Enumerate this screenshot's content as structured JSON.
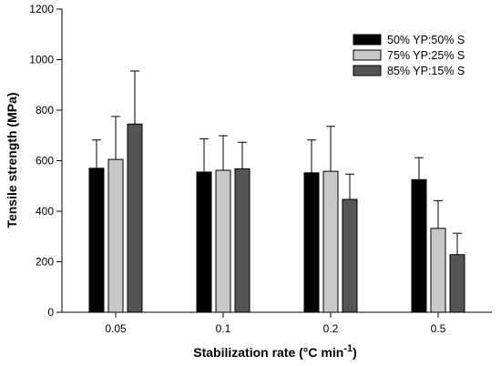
{
  "chart_data": {
    "type": "bar",
    "categories": [
      "0.05",
      "0.1",
      "0.2",
      "0.5"
    ],
    "series": [
      {
        "name": "50% YP:50% S",
        "color": "#000000",
        "values": [
          570,
          555,
          552,
          525
        ],
        "errors": [
          112,
          132,
          130,
          87
        ]
      },
      {
        "name": "75% YP:25% S",
        "color": "#c8c8c8",
        "values": [
          605,
          562,
          558,
          332
        ],
        "errors": [
          170,
          137,
          178,
          110
        ]
      },
      {
        "name": "85% YP:15% S",
        "color": "#555555",
        "values": [
          745,
          568,
          447,
          228
        ],
        "errors": [
          210,
          105,
          100,
          85
        ]
      }
    ],
    "xlabel": "Stabilization rate (°C min",
    "xlabel_sup": "-1",
    "xlabel_end": ")",
    "ylabel": "Tensile strength (MPa)",
    "ylim": [
      0,
      1200
    ],
    "yticks": [
      "0",
      "200",
      "400",
      "600",
      "800",
      "1000",
      "1200"
    ],
    "legend_position": "top-right",
    "grid": false
  }
}
